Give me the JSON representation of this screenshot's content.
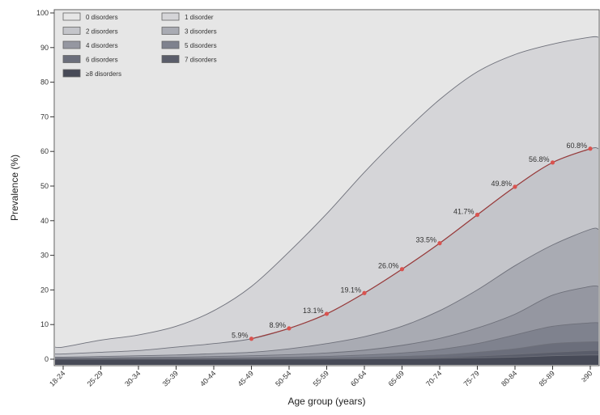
{
  "chart_data": {
    "type": "area",
    "title": "",
    "xlabel": "Age group (years)",
    "ylabel": "Prevalence (%)",
    "ylim": [
      0,
      100
    ],
    "yticks": [
      0,
      10,
      20,
      30,
      40,
      50,
      60,
      70,
      80,
      90,
      100
    ],
    "categories": [
      "18-24",
      "25-29",
      "30-34",
      "35-39",
      "40-44",
      "45-49",
      "50-54",
      "55-59",
      "60-64",
      "65-69",
      "70-74",
      "75-79",
      "80-84",
      "85-89",
      "≥90"
    ],
    "legend_position": "top-left",
    "grid": false,
    "series": [
      {
        "name": "0 disorders",
        "color": "#e6e6e6",
        "values": [
          100,
          100,
          100,
          100,
          100,
          100,
          100,
          100,
          100,
          100,
          100,
          100,
          100,
          100,
          100
        ]
      },
      {
        "name": "1 disorder",
        "color": "#d5d5d8",
        "values": [
          3.5,
          5.5,
          7,
          9.5,
          14,
          21,
          31,
          42,
          54,
          65,
          75,
          83,
          88,
          91,
          93
        ]
      },
      {
        "name": "2 disorders",
        "color": "#c4c5ca",
        "values": [
          1.5,
          2,
          2.5,
          3.5,
          4.5,
          5.9,
          8.9,
          13.1,
          19.1,
          26.0,
          33.5,
          41.7,
          49.8,
          56.8,
          60.8
        ]
      },
      {
        "name": "3 disorders",
        "color": "#a9abb3",
        "values": [
          0.6,
          0.8,
          1,
          1.2,
          1.6,
          2,
          3,
          4.5,
          6.5,
          9.5,
          14,
          20,
          27,
          33,
          37.5
        ]
      },
      {
        "name": "4 disorders",
        "color": "#9597a1",
        "values": [
          0.3,
          0.4,
          0.5,
          0.6,
          0.8,
          1,
          1.3,
          1.8,
          2.6,
          4,
          6,
          9,
          13,
          18.5,
          21
        ]
      },
      {
        "name": "5 disorders",
        "color": "#7f828e",
        "values": [
          0.15,
          0.2,
          0.25,
          0.3,
          0.35,
          0.45,
          0.6,
          0.8,
          1.2,
          1.8,
          2.8,
          4.5,
          7,
          9.5,
          10.5
        ]
      },
      {
        "name": "6 disorders",
        "color": "#6b6e7b",
        "values": [
          0.05,
          0.08,
          0.1,
          0.12,
          0.15,
          0.2,
          0.25,
          0.35,
          0.5,
          0.8,
          1.2,
          2,
          3,
          4.5,
          5
        ]
      },
      {
        "name": "7 disorders",
        "color": "#5a5d6a",
        "values": [
          0.02,
          0.03,
          0.04,
          0.05,
          0.06,
          0.08,
          0.1,
          0.15,
          0.2,
          0.35,
          0.55,
          0.9,
          1.4,
          2,
          2.5
        ]
      },
      {
        "name": "≥8 disorders",
        "color": "#474a57",
        "values": [
          0.01,
          0.01,
          0.02,
          0.02,
          0.03,
          0.03,
          0.04,
          0.06,
          0.08,
          0.15,
          0.25,
          0.4,
          0.6,
          1,
          1.2
        ]
      }
    ],
    "annotations": [
      {
        "category": "45-49",
        "value": 5.9,
        "label": "5.9%"
      },
      {
        "category": "50-54",
        "value": 8.9,
        "label": "8.9%"
      },
      {
        "category": "55-59",
        "value": 13.1,
        "label": "13.1%"
      },
      {
        "category": "60-64",
        "value": 19.1,
        "label": "19.1%"
      },
      {
        "category": "65-69",
        "value": 26.0,
        "label": "26.0%"
      },
      {
        "category": "70-74",
        "value": 33.5,
        "label": "33.5%"
      },
      {
        "category": "75-79",
        "value": 41.7,
        "label": "41.7%"
      },
      {
        "category": "80-84",
        "value": 49.8,
        "label": "49.8%"
      },
      {
        "category": "85-89",
        "value": 56.8,
        "label": "56.8%"
      },
      {
        "category": "≥90",
        "value": 60.8,
        "label": "60.8%"
      }
    ],
    "annotation_marker_color": "#d9534f",
    "annotation_line_color": "#9a3b3b"
  }
}
